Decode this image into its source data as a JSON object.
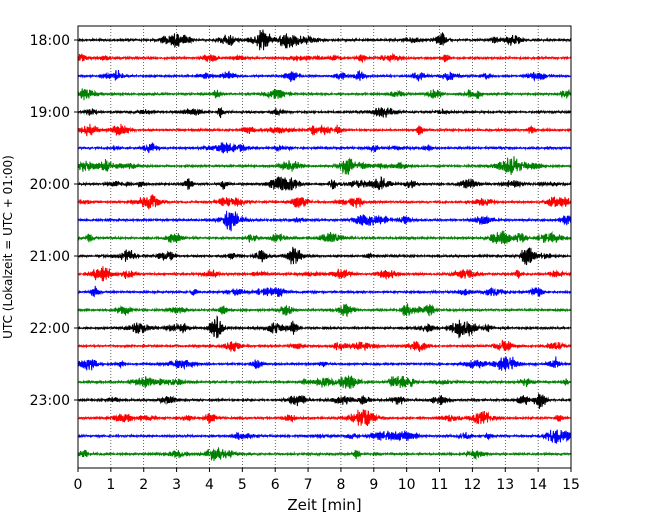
{
  "chart_data": {
    "type": "line",
    "title": "",
    "xlabel": "Zeit  [min]",
    "ylabel": "UTC (Lokalzeit = UTC + 01:00)",
    "xlim": [
      0,
      15
    ],
    "x_ticks": [
      0,
      1,
      2,
      3,
      4,
      5,
      6,
      7,
      8,
      9,
      10,
      11,
      12,
      13,
      14,
      15
    ],
    "x_tick_labels": [
      "0",
      "1",
      "2",
      "3",
      "4",
      "5",
      "6",
      "7",
      "8",
      "9",
      "10",
      "11",
      "12",
      "13",
      "14",
      "15"
    ],
    "y_tick_labels": [
      "18:00",
      "19:00",
      "20:00",
      "21:00",
      "22:00",
      "23:00"
    ],
    "y_tick_rows": [
      0,
      4,
      8,
      12,
      16,
      20
    ],
    "row_interval_minutes": 15,
    "row_count": 24,
    "first_row_time": "18:00",
    "x_grid": "dotted, every minute",
    "trace_color_cycle": [
      "#000000",
      "#ff0000",
      "#0000ff",
      "#008000"
    ],
    "legend": "none"
  }
}
